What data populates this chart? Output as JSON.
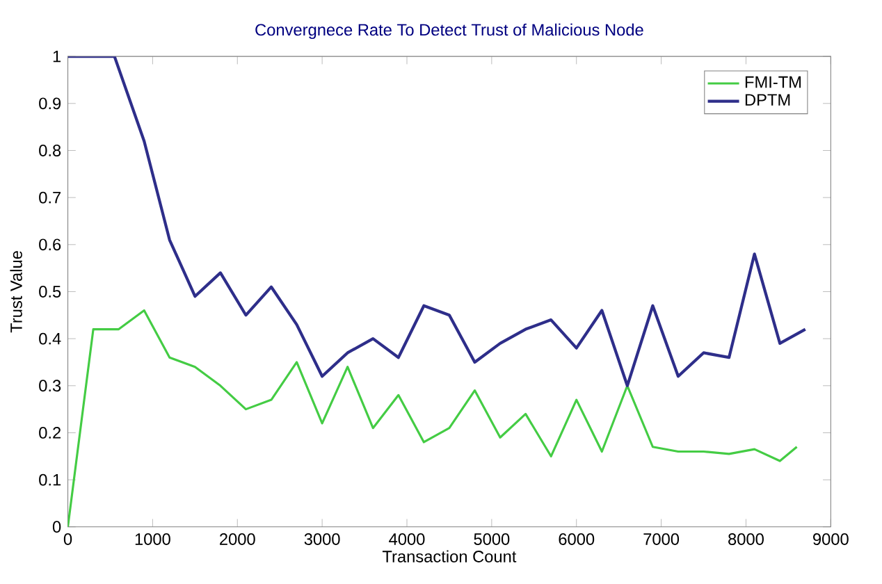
{
  "chart_data": {
    "type": "line",
    "title": "Convergnece Rate To Detect Trust of Malicious Node",
    "xlabel": "Transaction Count",
    "ylabel": "Trust Value",
    "xlim": [
      0,
      9000
    ],
    "xticks": [
      0,
      1000,
      2000,
      3000,
      4000,
      5000,
      6000,
      7000,
      8000,
      9000
    ],
    "ylim": [
      0,
      1
    ],
    "yticks": [
      0,
      0.1,
      0.2,
      0.3,
      0.4,
      0.5,
      0.6,
      0.7,
      0.8,
      0.9,
      1
    ],
    "legend": "top right",
    "grid": false,
    "series": [
      {
        "name": "FMI-TM",
        "color": "#44cc44",
        "x": [
          0,
          300,
          600,
          900,
          1200,
          1500,
          1800,
          2100,
          2400,
          2700,
          3000,
          3300,
          3600,
          3900,
          4200,
          4500,
          4800,
          5100,
          5400,
          5700,
          6000,
          6300,
          6600,
          6900,
          7200,
          7500,
          7800,
          8100,
          8400,
          8600
        ],
        "values": [
          0,
          0.42,
          0.42,
          0.46,
          0.36,
          0.34,
          0.3,
          0.25,
          0.27,
          0.35,
          0.22,
          0.34,
          0.21,
          0.28,
          0.18,
          0.21,
          0.29,
          0.19,
          0.24,
          0.15,
          0.27,
          0.16,
          0.3,
          0.17,
          0.16,
          0.16,
          0.155,
          0.165,
          0.14,
          0.17
        ]
      },
      {
        "name": "DPTM",
        "color": "#2e2e8a",
        "x": [
          0,
          550,
          900,
          1200,
          1500,
          1800,
          2100,
          2400,
          2700,
          3000,
          3300,
          3600,
          3900,
          4200,
          4500,
          4800,
          5100,
          5400,
          5700,
          6000,
          6300,
          6600,
          6900,
          7200,
          7500,
          7800,
          8100,
          8400,
          8700
        ],
        "values": [
          1,
          1,
          0.82,
          0.61,
          0.49,
          0.54,
          0.45,
          0.51,
          0.43,
          0.32,
          0.37,
          0.4,
          0.36,
          0.47,
          0.45,
          0.35,
          0.39,
          0.42,
          0.44,
          0.38,
          0.46,
          0.3,
          0.47,
          0.32,
          0.37,
          0.36,
          0.58,
          0.39,
          0.42
        ]
      }
    ]
  }
}
